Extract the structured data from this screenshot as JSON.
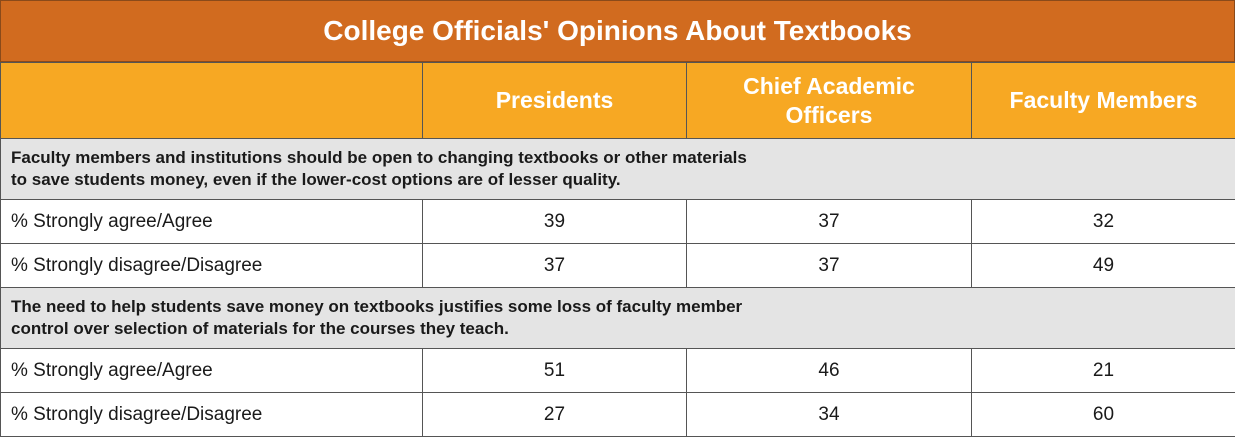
{
  "title": "College Officials' Opinions About Textbooks",
  "chart_data": {
    "type": "table",
    "title": "College Officials' Opinions About Textbooks",
    "columns": [
      "",
      "Presidents",
      "Chief Academic Officers",
      "Faculty Members"
    ],
    "column_header_lines": [
      [
        ""
      ],
      [
        "Presidents"
      ],
      [
        "Chief Academic",
        "Officers"
      ],
      [
        "Faculty Members"
      ]
    ],
    "sections": [
      {
        "question_lines": [
          "Faculty members and institutions should be open to changing textbooks or other materials",
          "to save students money, even if the lower-cost options are of lesser quality."
        ],
        "rows": [
          {
            "label": "% Strongly agree/Agree",
            "values": [
              39,
              37,
              32
            ]
          },
          {
            "label": "% Strongly disagree/Disagree",
            "values": [
              37,
              37,
              49
            ]
          }
        ]
      },
      {
        "question_lines": [
          "The need to help students save money on textbooks justifies some loss of faculty member",
          "control over selection of materials for the courses they teach."
        ],
        "rows": [
          {
            "label": "% Strongly agree/Agree",
            "values": [
              51,
              46,
              21
            ]
          },
          {
            "label": "% Strongly disagree/Disagree",
            "values": [
              27,
              34,
              60
            ]
          }
        ]
      }
    ]
  },
  "colors": {
    "title_bar": "#d16b1f",
    "header_row": "#f7a823",
    "question_row": "#e4e4e4",
    "border": "#555555"
  }
}
